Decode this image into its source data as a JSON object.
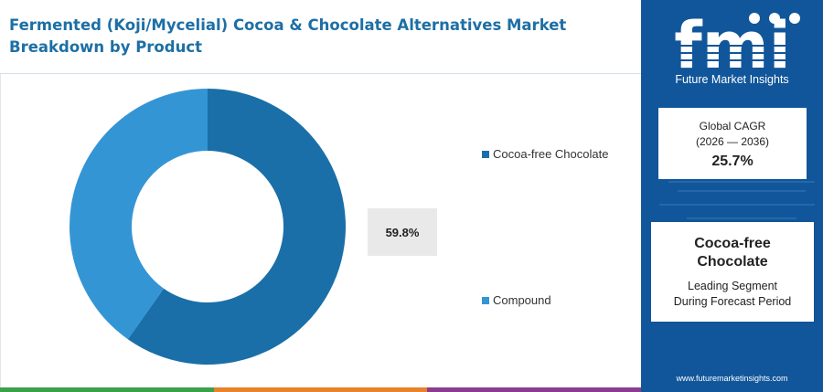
{
  "title": "Fermented (Koji/Mycelial) Cocoa & Chocolate Alternatives Market Breakdown by Product",
  "chart_data": {
    "type": "pie",
    "title": "Fermented (Koji/Mycelial) Cocoa & Chocolate Alternatives Market Breakdown by Product",
    "categories": [
      "Cocoa-free Chocolate",
      "Compound"
    ],
    "values": [
      59.8,
      40.2
    ],
    "colors": [
      "#1a6fa8",
      "#3495d4"
    ],
    "legend_position": "right",
    "annotation": "59.8%"
  },
  "legend": [
    {
      "label": "Cocoa-free Chocolate",
      "color": "#1a6fa8"
    },
    {
      "label": "Compound",
      "color": "#3495d4"
    }
  ],
  "brand": {
    "logo_text": "fmi",
    "name": "Future Market Insights",
    "url": "www.futuremarketinsights.com"
  },
  "cagr_card": {
    "label": "Global CAGR",
    "period": "(2026 — 2036)",
    "value": "25.7%"
  },
  "segment_card": {
    "segment": "Cocoa-free Chocolate",
    "description_line1": "Leading Segment",
    "description_line2": "During Forecast Period"
  },
  "bottom_bar_colors": [
    "#3aa14b",
    "#e8822b",
    "#8a3d8f"
  ],
  "panel_color": "#11569a"
}
